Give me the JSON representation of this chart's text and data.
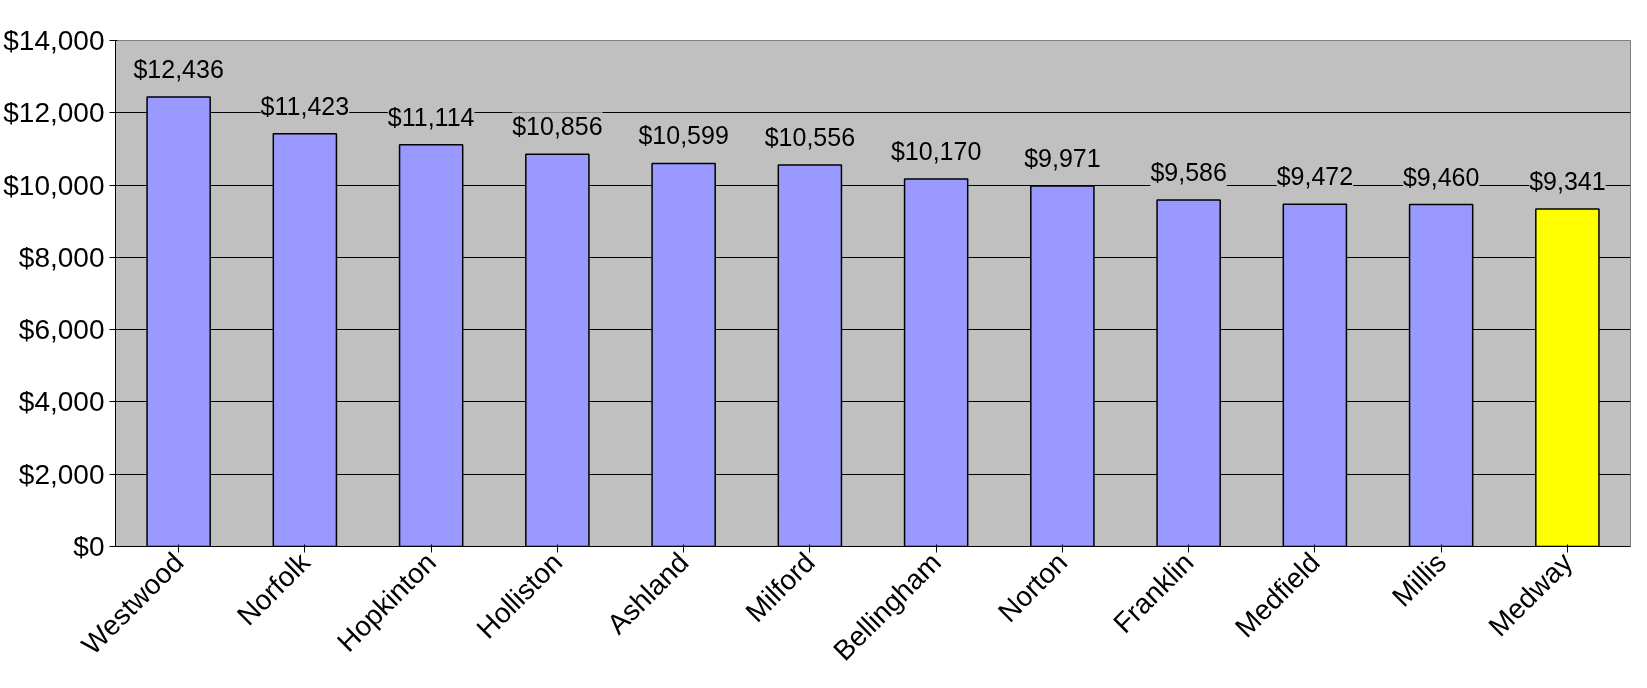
{
  "chart_data": {
    "type": "bar",
    "categories": [
      "Westwood",
      "Norfolk",
      "Hopkinton",
      "Holliston",
      "Ashland",
      "Milford",
      "Bellingham",
      "Norton",
      "Franklin",
      "Medfield",
      "Millis",
      "Medway"
    ],
    "values": [
      12436,
      11423,
      11114,
      10856,
      10599,
      10556,
      10170,
      9971,
      9586,
      9472,
      9460,
      9341
    ],
    "colors": [
      "#9999ff",
      "#9999ff",
      "#9999ff",
      "#9999ff",
      "#9999ff",
      "#9999ff",
      "#9999ff",
      "#9999ff",
      "#9999ff",
      "#9999ff",
      "#9999ff",
      "#ffff00"
    ],
    "value_labels": [
      "$12,436",
      "$11,423",
      "$11,114",
      "$10,856",
      "$10,599",
      "$10,556",
      "$10,170",
      "$9,971",
      "$9,586",
      "$9,472",
      "$9,460",
      "$9,341"
    ],
    "ylim": [
      0,
      14000
    ],
    "yticks": [
      {
        "value": 0,
        "label": "$0"
      },
      {
        "value": 2000,
        "label": "$2,000"
      },
      {
        "value": 4000,
        "label": "$4,000"
      },
      {
        "value": 6000,
        "label": "$6,000"
      },
      {
        "value": 8000,
        "label": "$8,000"
      },
      {
        "value": 10000,
        "label": "$10,000"
      },
      {
        "value": 12000,
        "label": "$12,000"
      },
      {
        "value": 14000,
        "label": "$14,000"
      }
    ],
    "grid": "y"
  }
}
